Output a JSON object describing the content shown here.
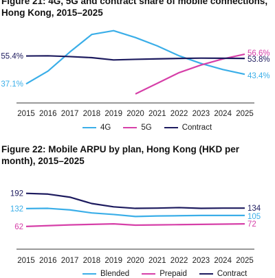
{
  "colors": {
    "g4": "#3aaee8",
    "g5": "#d63fa8",
    "contract": "#1c1a5e",
    "axis": "#333333"
  },
  "chart_data": [
    {
      "type": "line",
      "title": "Figure 21: 4G, 5G and contract share of mobile connections, Hong Kong, 2015–2025",
      "xlabel": "",
      "ylabel": "",
      "x": [
        "2015",
        "2016",
        "2017",
        "2018",
        "2019",
        "2020",
        "2021",
        "2022",
        "2023",
        "2024",
        "2025"
      ],
      "ylim": [
        30,
        75
      ],
      "series": [
        {
          "name": "4G",
          "color": "#3aaee8",
          "values": [
            37.1,
            45.5,
            58.0,
            69.5,
            72.0,
            67.5,
            62.0,
            55.5,
            50.5,
            46.5,
            43.4
          ]
        },
        {
          "name": "5G",
          "color": "#d63fa8",
          "values": [
            null,
            null,
            null,
            null,
            null,
            30.5,
            37.5,
            44.5,
            49.5,
            53.5,
            56.6
          ]
        },
        {
          "name": "Contract",
          "color": "#1c1a5e",
          "values": [
            55.4,
            55.5,
            55.0,
            54.3,
            52.8,
            53.2,
            53.5,
            53.8,
            54.0,
            53.9,
            53.8
          ]
        }
      ],
      "start_labels": [
        {
          "series": "Contract",
          "text": "55.4%"
        },
        {
          "series": "4G",
          "text": "37.1%"
        }
      ],
      "end_labels": [
        {
          "series": "5G",
          "text": "56.6%"
        },
        {
          "series": "Contract",
          "text": "53.8%"
        },
        {
          "series": "4G",
          "text": "43.4%"
        }
      ],
      "legend": [
        "4G",
        "5G",
        "Contract"
      ]
    },
    {
      "type": "line",
      "title": "Figure 22: Mobile ARPU by plan, Hong Kong (HKD per month), 2015–2025",
      "xlabel": "",
      "ylabel": "",
      "x": [
        "2015",
        "2016",
        "2017",
        "2018",
        "2019",
        "2020",
        "2021",
        "2022",
        "2023",
        "2024",
        "2025"
      ],
      "ylim": [
        40,
        210
      ],
      "series": [
        {
          "name": "Blended",
          "color": "#3aaee8",
          "values": [
            132,
            133,
            127,
            115,
            109,
            101,
            103,
            104,
            105,
            105,
            105
          ]
        },
        {
          "name": "Prepaid",
          "color": "#d63fa8",
          "values": [
            62,
            65,
            68,
            70,
            72,
            67,
            68,
            69,
            70,
            71,
            72
          ]
        },
        {
          "name": "Contract",
          "color": "#1c1a5e",
          "values": [
            192,
            189,
            177,
            152,
            139,
            133,
            134,
            136,
            133,
            134,
            134
          ]
        }
      ],
      "start_labels": [
        {
          "series": "Contract",
          "text": "192"
        },
        {
          "series": "Blended",
          "text": "132"
        },
        {
          "series": "Prepaid",
          "text": "62"
        }
      ],
      "end_labels": [
        {
          "series": "Contract",
          "text": "134"
        },
        {
          "series": "Blended",
          "text": "105"
        },
        {
          "series": "Prepaid",
          "text": "72"
        }
      ],
      "legend": [
        "Blended",
        "Prepaid",
        "Contract"
      ]
    }
  ]
}
